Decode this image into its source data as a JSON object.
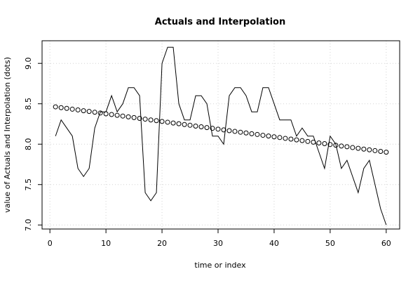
{
  "chart_data": {
    "type": "line",
    "title": "Actuals and Interpolation",
    "xlabel": "time or index",
    "ylabel": "value of Actuals and Interpolation (dots)",
    "xlim": [
      -1.4,
      62.4
    ],
    "ylim": [
      6.95,
      9.28
    ],
    "xticks": [
      0,
      10,
      20,
      30,
      40,
      50,
      60
    ],
    "yticks": [
      7.0,
      7.5,
      8.0,
      8.5,
      9.0
    ],
    "ytick_labels": [
      "7.0",
      "7.5",
      "8.0",
      "8.5",
      "9.0"
    ],
    "grid": true,
    "series": [
      {
        "style": "line",
        "color": "#000000",
        "x": [
          1,
          2,
          3,
          4,
          5,
          6,
          7,
          8,
          9,
          10,
          11,
          12,
          13,
          14,
          15,
          16,
          17,
          18,
          19,
          20,
          21,
          22,
          23,
          24,
          25,
          26,
          27,
          28,
          29,
          30,
          31,
          32,
          33,
          34,
          35,
          36,
          37,
          38,
          39,
          40,
          41,
          42,
          43,
          44,
          45,
          46,
          47,
          48,
          49,
          50,
          51,
          52,
          53,
          54,
          55,
          56,
          57,
          58,
          59,
          60
        ],
        "y": [
          8.1,
          8.3,
          8.2,
          8.1,
          7.7,
          7.6,
          7.7,
          8.2,
          8.4,
          8.4,
          8.6,
          8.4,
          8.5,
          8.7,
          8.7,
          8.6,
          7.4,
          7.3,
          7.4,
          9.0,
          9.2,
          9.2,
          8.5,
          8.3,
          8.3,
          8.6,
          8.6,
          8.5,
          8.1,
          8.1,
          8.0,
          8.6,
          8.7,
          8.7,
          8.6,
          8.4,
          8.4,
          8.7,
          8.7,
          8.5,
          8.3,
          8.3,
          8.3,
          8.1,
          8.2,
          8.1,
          8.1,
          7.9,
          7.7,
          8.1,
          8.0,
          7.7,
          7.8,
          7.6,
          7.4,
          7.7,
          7.8,
          7.5,
          7.2,
          7.0
        ]
      },
      {
        "style": "points",
        "color": "#000000",
        "x": [
          1,
          2,
          3,
          4,
          5,
          6,
          7,
          8,
          9,
          10,
          11,
          12,
          13,
          14,
          15,
          16,
          17,
          18,
          19,
          20,
          21,
          22,
          23,
          24,
          25,
          26,
          27,
          28,
          29,
          30,
          31,
          32,
          33,
          34,
          35,
          36,
          37,
          38,
          39,
          40,
          41,
          42,
          43,
          44,
          45,
          46,
          47,
          48,
          49,
          50,
          51,
          52,
          53,
          54,
          55,
          56,
          57,
          58,
          59,
          60
        ],
        "y": [
          8.462,
          8.452,
          8.443,
          8.433,
          8.424,
          8.414,
          8.405,
          8.395,
          8.386,
          8.376,
          8.367,
          8.357,
          8.348,
          8.338,
          8.329,
          8.319,
          8.31,
          8.3,
          8.291,
          8.281,
          8.272,
          8.262,
          8.253,
          8.243,
          8.234,
          8.224,
          8.215,
          8.205,
          8.196,
          8.186,
          8.177,
          8.167,
          8.158,
          8.148,
          8.139,
          8.129,
          8.12,
          8.11,
          8.101,
          8.091,
          8.082,
          8.072,
          8.063,
          8.053,
          8.044,
          8.034,
          8.025,
          8.015,
          8.006,
          7.996,
          7.987,
          7.977,
          7.968,
          7.958,
          7.949,
          7.939,
          7.93,
          7.92,
          7.911,
          7.901
        ]
      }
    ]
  }
}
